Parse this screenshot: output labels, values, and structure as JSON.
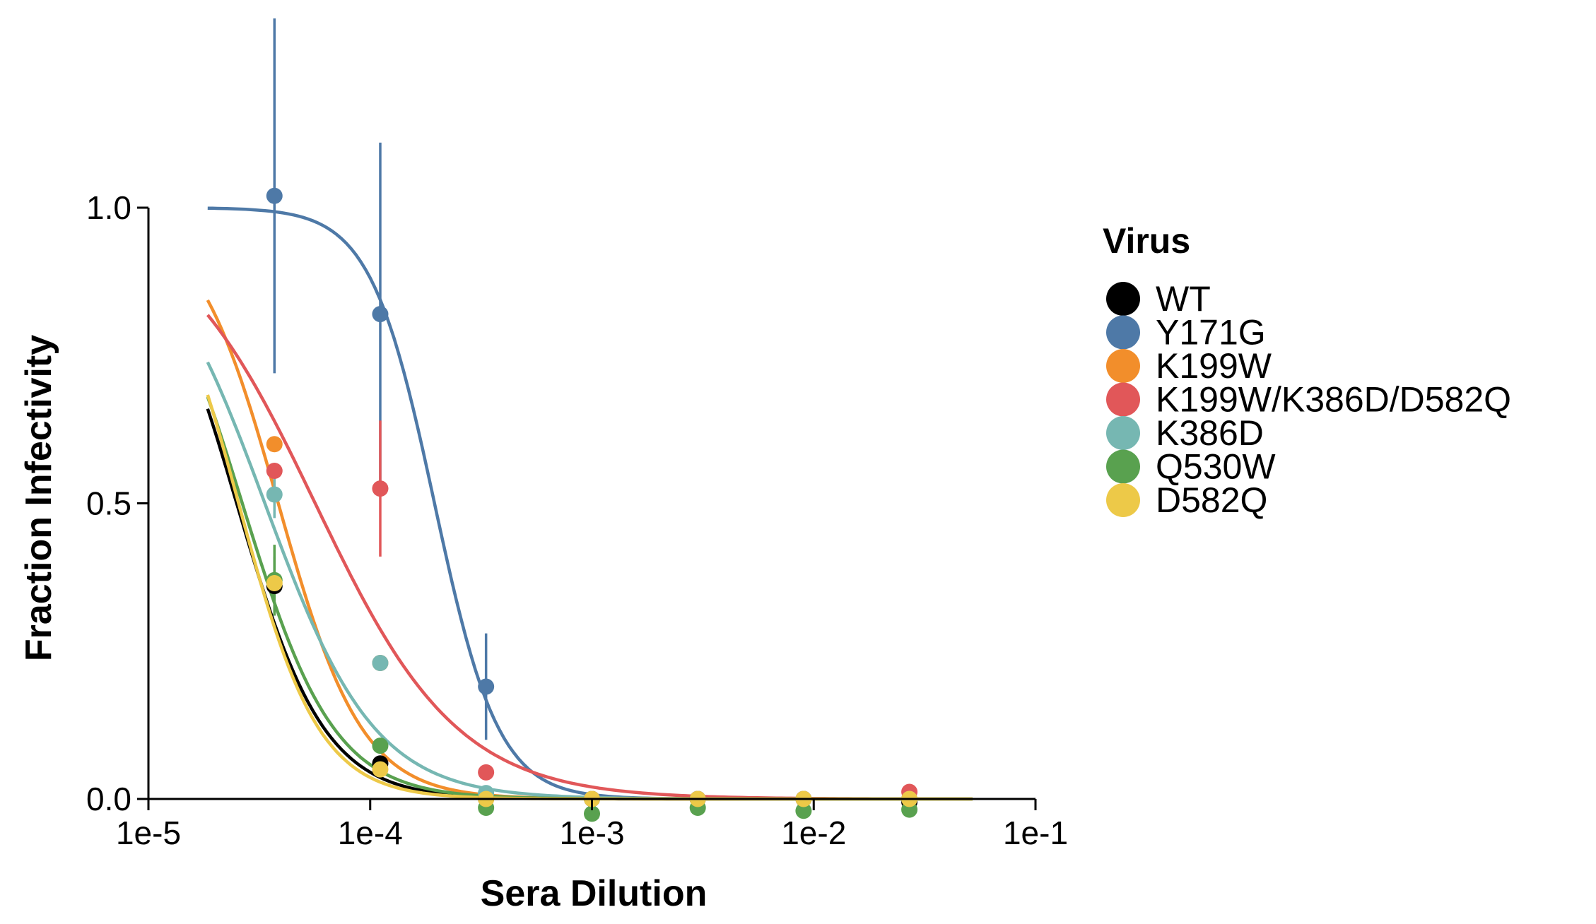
{
  "chart_data": {
    "type": "line",
    "xlabel": "Sera Dilution",
    "ylabel": "Fraction Infectivity",
    "xscale": "log",
    "xlim": [
      1e-05,
      0.1
    ],
    "ylim": [
      0,
      1.0
    ],
    "x_ticks": [
      "1e-5",
      "1e-4",
      "1e-3",
      "1e-2",
      "1e-1"
    ],
    "y_ticks": [
      "0.0",
      "0.5",
      "1.0"
    ],
    "legend": {
      "title": "Virus",
      "position": "right"
    },
    "grid": false,
    "x": [
      3.7e-05,
      0.000111,
      0.000333,
      0.001,
      0.003,
      0.009,
      0.027
    ],
    "series": [
      {
        "name": "WT",
        "color": "#000000",
        "values": [
          0.36,
          0.06,
          0.0,
          0.0,
          0.0,
          0.0,
          -0.005
        ],
        "errors": [
          0.05,
          0.0,
          0.0,
          0.0,
          0.0,
          0.0,
          0.0
        ],
        "fit": {
          "ic50": 2.5e-05,
          "hill": 2.2
        }
      },
      {
        "name": "Y171G",
        "color": "#4e79a7",
        "values": [
          1.02,
          0.82,
          0.19,
          0.0,
          0.0,
          0.0,
          0.0
        ],
        "errors": [
          0.3,
          0.29,
          0.09,
          0.0,
          0.0,
          0.0,
          0.0
        ],
        "fit": {
          "ic50": 0.000195,
          "hill": 3.0
        }
      },
      {
        "name": "K199W",
        "color": "#f28e2b",
        "values": [
          0.6,
          0.23,
          0.0,
          0.0,
          0.0,
          0.0,
          0.0
        ],
        "errors": [
          0.0,
          0.0,
          0.0,
          0.0,
          0.0,
          0.0,
          0.0
        ],
        "fit": {
          "ic50": 3.85e-05,
          "hill": 2.3
        }
      },
      {
        "name": "K199W/K386D/D582Q",
        "color": "#e15759",
        "values": [
          0.555,
          0.525,
          0.045,
          0.0,
          0.0,
          0.0,
          0.012
        ],
        "errors": [
          0.0,
          0.115,
          0.0,
          0.0,
          0.0,
          0.0,
          0.0
        ],
        "fit": {
          "ic50": 5.65e-05,
          "hill": 1.35
        }
      },
      {
        "name": "K386D",
        "color": "#76b7b2",
        "values": [
          0.515,
          0.23,
          0.01,
          0.0,
          0.0,
          0.0,
          0.0
        ],
        "errors": [
          0.04,
          0.0,
          0.0,
          0.0,
          0.0,
          0.0,
          0.0
        ],
        "fit": {
          "ic50": 3.35e-05,
          "hill": 1.75
        }
      },
      {
        "name": "Q530W",
        "color": "#59a14f",
        "values": [
          0.37,
          0.09,
          -0.015,
          -0.025,
          -0.015,
          -0.02,
          -0.018
        ],
        "errors": [
          0.06,
          0.0,
          0.0,
          0.0,
          0.0,
          0.0,
          0.0
        ],
        "fit": {
          "ic50": 2.65e-05,
          "hill": 2.1
        }
      },
      {
        "name": "D582Q",
        "color": "#edc948",
        "values": [
          0.365,
          0.05,
          0.0,
          0.0,
          0.0,
          0.0,
          0.0
        ],
        "errors": [
          0.0,
          0.0,
          0.0,
          0.0,
          0.0,
          0.0,
          0.0
        ],
        "fit": {
          "ic50": 2.55e-05,
          "hill": 2.4
        }
      }
    ]
  }
}
